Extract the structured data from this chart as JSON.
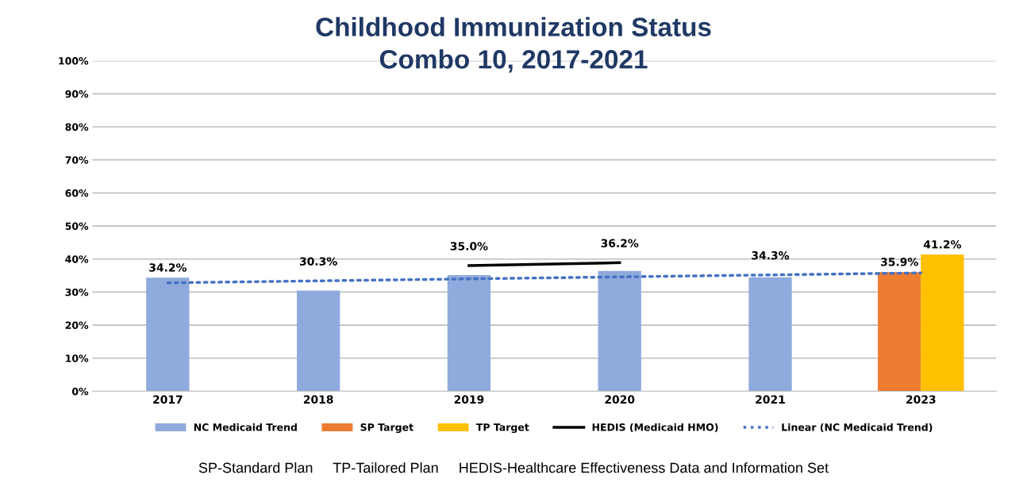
{
  "chart_data": {
    "type": "bar",
    "title": "Childhood Immunization Status\nCombo 10, 2017-2021",
    "categories": [
      "2017",
      "2018",
      "2019",
      "2020",
      "2021",
      "2023"
    ],
    "series": [
      {
        "name": "NC Medicaid Trend",
        "color": "#8faadc",
        "values": [
          34.2,
          30.3,
          35.0,
          36.2,
          34.3,
          null
        ],
        "value_labels": [
          "34.2%",
          "30.3%",
          "35.0%",
          "36.2%",
          "34.3%",
          null
        ]
      },
      {
        "name": "SP Target",
        "color": "#ed7d31",
        "values": [
          null,
          null,
          null,
          null,
          null,
          35.9
        ],
        "value_labels": [
          null,
          null,
          null,
          null,
          null,
          "35.9%"
        ]
      },
      {
        "name": "TP Target",
        "color": "#ffc000",
        "values": [
          null,
          null,
          null,
          null,
          null,
          41.2
        ],
        "value_labels": [
          null,
          null,
          null,
          null,
          null,
          "41.2%"
        ]
      },
      {
        "name": "HEDIS (Medicaid HMO)",
        "type": "line",
        "color": "#000000",
        "line_style": "solid",
        "values": [
          null,
          null,
          38.0,
          38.9,
          null,
          null
        ]
      },
      {
        "name": "Linear (NC Medicaid Trend)",
        "type": "line",
        "color": "#4472c4",
        "line_style": "dotted",
        "values": [
          32.8,
          33.4,
          34.0,
          34.6,
          35.2,
          35.8
        ]
      }
    ],
    "ylim": [
      0,
      100
    ],
    "yticks": [
      {
        "value": 0,
        "label": "0%"
      },
      {
        "value": 10,
        "label": "10%"
      },
      {
        "value": 20,
        "label": "20%"
      },
      {
        "value": 30,
        "label": "30%"
      },
      {
        "value": 40,
        "label": "40%"
      },
      {
        "value": 50,
        "label": "50%"
      },
      {
        "value": 60,
        "label": "60%"
      },
      {
        "value": 70,
        "label": "70%"
      },
      {
        "value": 80,
        "label": "80%"
      },
      {
        "value": 90,
        "label": "90%"
      },
      {
        "value": 100,
        "label": "100%"
      }
    ],
    "grid": "y",
    "legend": "bottom",
    "annotations": [
      "SP-Standard Plan     TP-Tailored Plan     HEDIS-Healthcare Effectiveness Data and Information Set"
    ]
  }
}
